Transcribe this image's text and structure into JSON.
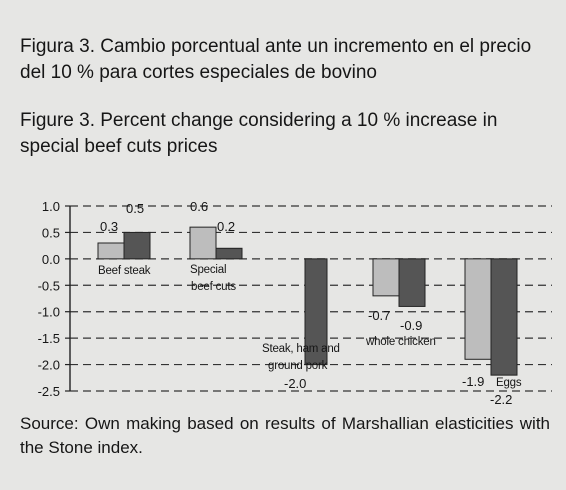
{
  "caption_es": "Figura 3. Cambio porcentual ante un incremento en el precio del 10 % para cortes especiales de bovino",
  "caption_en": "Figure 3. Percent change considering a 10 % increase in special beef cuts prices",
  "source": "Source: Own making based on results of Marshallian elasticities with the Stone index.",
  "chart_data": {
    "type": "bar",
    "categories": [
      "Beef steak",
      "Special beef cuts",
      "Steak, ham and ground pork",
      "whole chicken",
      "Eggs"
    ],
    "series": [
      {
        "values": [
          0.3,
          0.6,
          0,
          -0.7,
          -1.9
        ],
        "color": "#bdbdbd"
      },
      {
        "values": [
          0.5,
          0.2,
          -2.0,
          -0.9,
          -2.2
        ],
        "color": "#555555"
      }
    ],
    "value_labels": [
      [
        "0.3",
        "0.5"
      ],
      [
        "0.6",
        "0.2"
      ],
      [
        "",
        "-2.0"
      ],
      [
        "-0.7",
        "-0.9"
      ],
      [
        "-1.9",
        "-2.2"
      ]
    ],
    "yticks": [
      "1.0",
      "0.5",
      "0.0",
      "-0.5",
      "-1.0",
      "-1.5",
      "-2.0",
      "-2.5"
    ],
    "ylim": [
      -2.5,
      1.0
    ],
    "grid": true,
    "title": "",
    "xlabel": "",
    "ylabel": ""
  }
}
